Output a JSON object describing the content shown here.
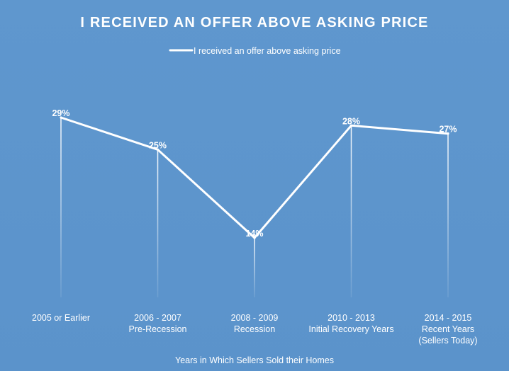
{
  "chart_data": {
    "type": "line",
    "title": "I RECEIVED AN OFFER ABOVE ASKING PRICE",
    "xlabel": "Years in Which Sellers Sold their Homes",
    "ylabel": "",
    "legend": {
      "position": "top-center"
    },
    "grid": false,
    "categories": [
      [
        "2005 or Earlier"
      ],
      [
        "2006 - 2007",
        "Pre-Recession"
      ],
      [
        "2008 - 2009",
        "Recession"
      ],
      [
        "2010 - 2013",
        "Initial Recovery Years"
      ],
      [
        "2014 - 2015",
        "Recent Years",
        "(Sellers Today)"
      ]
    ],
    "series": [
      {
        "name": "I received an offer above asking price",
        "values": [
          29,
          25,
          14,
          28,
          27
        ],
        "labels": [
          "29%",
          "25%",
          "14%",
          "28%",
          "27%"
        ]
      }
    ],
    "colors": {
      "background": "#5f97ce",
      "line": "#ffffff",
      "text": "#ffffff"
    }
  }
}
